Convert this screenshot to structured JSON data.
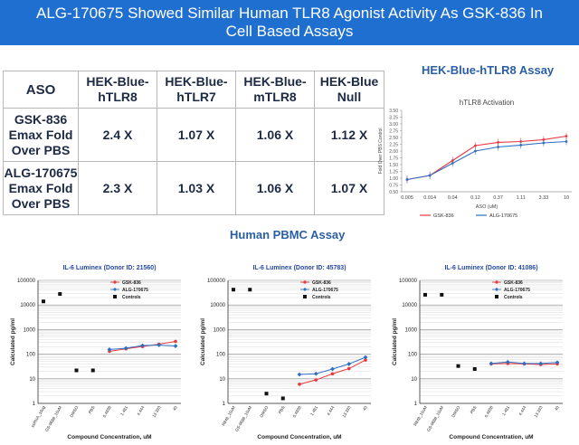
{
  "banner": {
    "line1": "ALG-170675 Showed Similar Human TLR8 Agonist Activity As GSK-836 In",
    "line2": "Cell Based Assays"
  },
  "table": {
    "headers": [
      "ASO",
      "HEK-Blue-hTLR8",
      "HEK-Blue-hTLR7",
      "HEK-Blue-mTLR8",
      "HEK-Blue Null"
    ],
    "rows": [
      {
        "label": "GSK-836 Emax Fold Over PBS",
        "values": [
          "2.4 X",
          "1.07 X",
          "1.06 X",
          "1.12 X"
        ]
      },
      {
        "label": "ALG-170675 Emax Fold Over PBS",
        "values": [
          "2.3 X",
          "1.03 X",
          "1.06 X",
          "1.07 X"
        ]
      }
    ]
  },
  "section_titles": {
    "hek": "HEK-Blue-hTLR8 Assay",
    "pbmc": "Human PBMC Assay"
  },
  "colors": {
    "gsk": "#e8383d",
    "alg": "#2f6fc0",
    "controls": "#111111",
    "banner": "#1f6fd0"
  },
  "chart_data": [
    {
      "type": "line",
      "title": "hTLR8 Activation",
      "xlabel": "ASO (uM)",
      "ylabel": "Fold Over PBS Control",
      "categories": [
        "0.005",
        "0.014",
        "0.04",
        "0.12",
        "0.37",
        "1.11",
        "3.33",
        "10"
      ],
      "ylim": [
        0.5,
        3.5
      ],
      "yticks": [
        "0.50",
        "0.75",
        "1.00",
        "1.25",
        "1.50",
        "1.75",
        "2.00",
        "2.25",
        "2.50",
        "2.75",
        "3.00",
        "3.25",
        "3.50"
      ],
      "legend_position": "bottom",
      "series": [
        {
          "name": "GSK-836",
          "values": [
            0.95,
            1.1,
            1.65,
            2.2,
            2.32,
            2.35,
            2.42,
            2.55
          ]
        },
        {
          "name": "ALG-170675",
          "values": [
            0.95,
            1.1,
            1.55,
            2.0,
            2.15,
            2.22,
            2.3,
            2.35
          ]
        }
      ]
    },
    {
      "type": "scatter",
      "title": "IL-6 Luminex (Donor ID: 21560)",
      "xlabel": "Compound Concentration, uM",
      "ylabel": "Calculated pg/ml",
      "yscale": "log",
      "ylim": [
        1,
        100000
      ],
      "yticks": [
        "1",
        "10",
        "100",
        "1000",
        "10000",
        "100000"
      ],
      "x_labels": [
        "ssRNA_10ug",
        "GS-9688_10uM",
        "DMSO",
        "PBS",
        "0.4938",
        "1.481",
        "4.444",
        "13.333",
        "40"
      ],
      "legend": [
        "GSK-836",
        "ALG-170675",
        "Controls"
      ],
      "controls": [
        14000,
        28000,
        22,
        22
      ],
      "series": [
        {
          "name": "GSK-836",
          "values": [
            130,
            165,
            205,
            255,
            330
          ]
        },
        {
          "name": "ALG-170675",
          "values": [
            155,
            175,
            225,
            235,
            215
          ]
        }
      ]
    },
    {
      "type": "scatter",
      "title": "IL-6 Luminex (Donor ID: 45783)",
      "xlabel": "Compound Concentration, uM",
      "ylabel": "Calculated pg/ml",
      "yscale": "log",
      "ylim": [
        1,
        100000
      ],
      "yticks": [
        "1",
        "10",
        "100",
        "1000",
        "10000",
        "100000"
      ],
      "x_labels": [
        "R848_10uM",
        "GS-9688_10uM",
        "DMSO",
        "PBS",
        "0.4938",
        "1.481",
        "4.444",
        "13.333",
        "40"
      ],
      "legend": [
        "GSK-836",
        "ALG-170675",
        "Controls"
      ],
      "controls": [
        42000,
        42000,
        2.5,
        1.6
      ],
      "series": [
        {
          "name": "GSK-836",
          "values": [
            6,
            9,
            16,
            26,
            58
          ]
        },
        {
          "name": "ALG-170675",
          "values": [
            15,
            16,
            25,
            40,
            75
          ]
        }
      ]
    },
    {
      "type": "scatter",
      "title": "IL-6 Luminex (Donor ID: 41086)",
      "xlabel": "Compound Concentration, uM",
      "ylabel": "Calculated pg/ml",
      "yscale": "log",
      "ylim": [
        1,
        100000
      ],
      "yticks": [
        "1",
        "10",
        "100",
        "1000",
        "10000",
        "100000"
      ],
      "x_labels": [
        "R848_10uM",
        "GS-9688_10uM",
        "DMSO",
        "PBS",
        "0.4938",
        "1.481",
        "4.444",
        "13.333",
        "40"
      ],
      "legend": [
        "GSK-836",
        "ALG-170675",
        "Controls"
      ],
      "controls": [
        26000,
        26000,
        33,
        25
      ],
      "series": [
        {
          "name": "GSK-836",
          "values": [
            40,
            42,
            40,
            38,
            40
          ]
        },
        {
          "name": "ALG-170675",
          "values": [
            42,
            48,
            42,
            42,
            46
          ]
        }
      ]
    }
  ]
}
